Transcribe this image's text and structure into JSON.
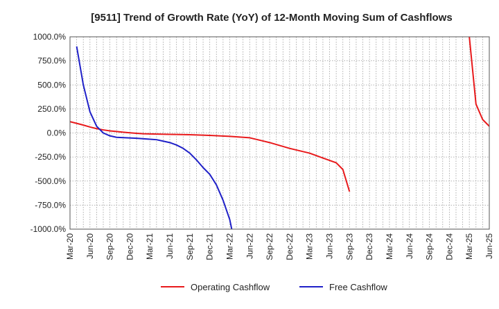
{
  "chart_data": {
    "type": "line",
    "title": "[9511]  Trend of Growth Rate (YoY) of 12-Month Moving Sum of Cashflows",
    "xlabel": "",
    "ylabel": "",
    "x_ticks": [
      "Mar-20",
      "Jun-20",
      "Sep-20",
      "Dec-20",
      "Mar-21",
      "Jun-21",
      "Sep-21",
      "Dec-21",
      "Mar-22",
      "Jun-22",
      "Sep-22",
      "Dec-22",
      "Mar-23",
      "Jun-23",
      "Sep-23",
      "Dec-23",
      "Mar-24",
      "Jun-24",
      "Sep-24",
      "Dec-24",
      "Mar-25",
      "Jun-25"
    ],
    "y_ticks": [
      "1000.0%",
      "750.0%",
      "500.0%",
      "250.0%",
      "0.0%",
      "-250.0%",
      "-500.0%",
      "-750.0%",
      "-1000.0%"
    ],
    "ylim": [
      -1000,
      1000
    ],
    "grid": true,
    "legend_position": "bottom",
    "series": [
      {
        "name": "Operating Cashflow",
        "color": "#e8191b",
        "points": [
          [
            0,
            118
          ],
          [
            1,
            100
          ],
          [
            2,
            82
          ],
          [
            3,
            62
          ],
          [
            4,
            45
          ],
          [
            5,
            32
          ],
          [
            6,
            22
          ],
          [
            7,
            15
          ],
          [
            8,
            8
          ],
          [
            9,
            2
          ],
          [
            10,
            -4
          ],
          [
            11,
            -8
          ],
          [
            12,
            -10
          ],
          [
            15,
            -14
          ],
          [
            18,
            -18
          ],
          [
            21,
            -25
          ],
          [
            24,
            -35
          ],
          [
            27,
            -50
          ],
          [
            30,
            -100
          ],
          [
            33,
            -160
          ],
          [
            36,
            -210
          ],
          [
            38,
            -260
          ],
          [
            40,
            -310
          ],
          [
            41,
            -380
          ],
          [
            42,
            -610
          ],
          [
            null,
            null
          ],
          [
            60,
            1000
          ],
          [
            61,
            300
          ],
          [
            62,
            140
          ],
          [
            63,
            70
          ],
          [
            64,
            35
          ]
        ]
      },
      {
        "name": "Free Cashflow",
        "color": "#1f20c8",
        "points": [
          [
            1,
            900
          ],
          [
            2,
            500
          ],
          [
            3,
            220
          ],
          [
            4,
            70
          ],
          [
            5,
            0
          ],
          [
            6,
            -30
          ],
          [
            7,
            -45
          ],
          [
            10,
            -55
          ],
          [
            12,
            -65
          ],
          [
            13,
            -70
          ],
          [
            14,
            -85
          ],
          [
            15,
            -100
          ],
          [
            16,
            -125
          ],
          [
            17,
            -160
          ],
          [
            18,
            -210
          ],
          [
            19,
            -280
          ],
          [
            20,
            -360
          ],
          [
            21,
            -430
          ],
          [
            22,
            -540
          ],
          [
            23,
            -700
          ],
          [
            24,
            -900
          ],
          [
            24.3,
            -1000
          ]
        ]
      }
    ]
  }
}
